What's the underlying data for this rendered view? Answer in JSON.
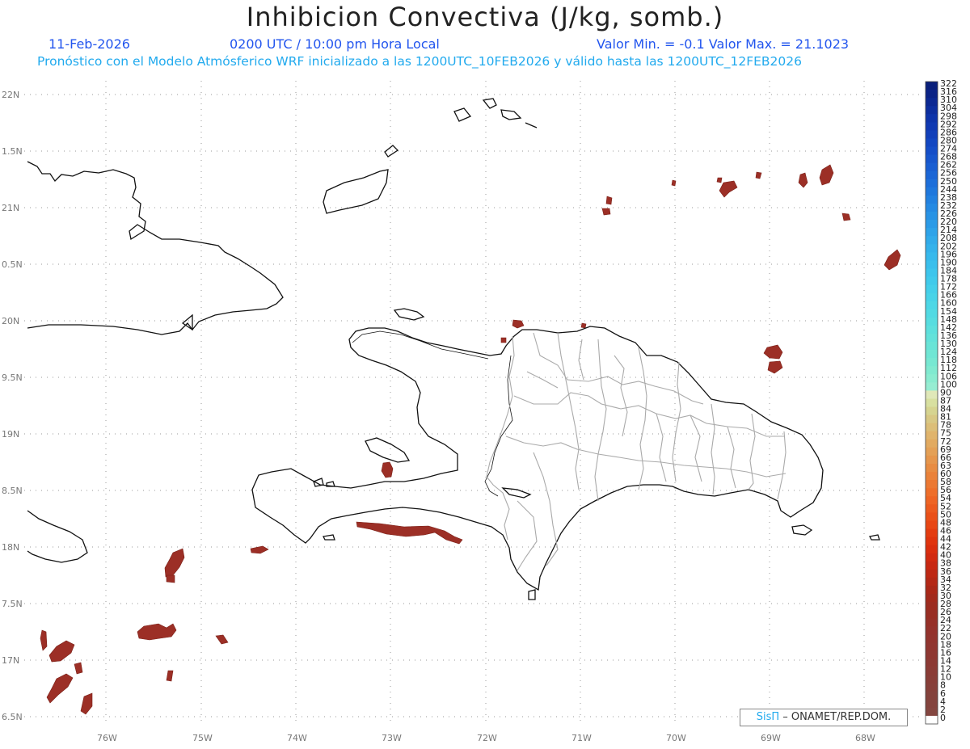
{
  "header": {
    "title": "Inhibicion Convectiva (J/kg, somb.)",
    "date": "11-Feb-2026",
    "time": "0200 UTC / 10:00 pm Hora Local",
    "minmax": "Valor Min. = -0.1  Valor Max. = 21.1023",
    "forecast": "Pronóstico con el Modelo Atmósferico WRF inicializado a las 1200UTC_10FEB2026 y válido hasta las  1200UTC_12FEB2026"
  },
  "map": {
    "lat_labels": [
      "22N",
      "1.5N",
      "21N",
      "0.5N",
      "20N",
      "9.5N",
      "19N",
      "8.5N",
      "18N",
      "7.5N",
      "17N",
      "6.5N"
    ],
    "lon_labels": [
      "76W",
      "75W",
      "74W",
      "73W",
      "72W",
      "71W",
      "70W",
      "69W",
      "68W"
    ],
    "colors": {
      "coast": "#111111",
      "borders": "#aaaaaa",
      "grid": "#999999",
      "cin_fill": "#9c2f26"
    }
  },
  "colorbar": {
    "labels": [
      "322",
      "316",
      "310",
      "304",
      "298",
      "292",
      "286",
      "280",
      "274",
      "268",
      "262",
      "256",
      "250",
      "244",
      "238",
      "232",
      "226",
      "220",
      "214",
      "208",
      "202",
      "196",
      "190",
      "184",
      "178",
      "172",
      "166",
      "160",
      "154",
      "148",
      "142",
      "136",
      "130",
      "124",
      "118",
      "112",
      "106",
      "100",
      "90",
      "87",
      "84",
      "81",
      "78",
      "75",
      "72",
      "69",
      "66",
      "63",
      "60",
      "58",
      "56",
      "54",
      "52",
      "50",
      "48",
      "46",
      "44",
      "42",
      "40",
      "38",
      "36",
      "34",
      "32",
      "30",
      "28",
      "26",
      "24",
      "22",
      "20",
      "18",
      "16",
      "14",
      "12",
      "10",
      "8",
      "6",
      "4",
      "2",
      "0"
    ],
    "colors": [
      "#0a1f7a",
      "#0b2386",
      "#0c2892",
      "#0d2e9e",
      "#0e34aa",
      "#1039b2",
      "#1240ba",
      "#1347c2",
      "#154ec8",
      "#1756cd",
      "#195ed2",
      "#1b66d6",
      "#1d6fda",
      "#1f78dd",
      "#2281e0",
      "#258ae3",
      "#2893e5",
      "#2b9be7",
      "#2ea3e9",
      "#31abea",
      "#34b2eb",
      "#37b9ec",
      "#3abfec",
      "#3dc5ec",
      "#40caeb",
      "#44cfea",
      "#48d3e8",
      "#4dd7e6",
      "#52dae3",
      "#57dde0",
      "#5de0dd",
      "#63e2da",
      "#69e4d7",
      "#70e6d4",
      "#77e8d2",
      "#80ead0",
      "#8aecd0",
      "#96edd2",
      "#e0e8b8",
      "#d8e0a0",
      "#d6d490",
      "#d8c884",
      "#dcbe78",
      "#e0b46c",
      "#e2aa60",
      "#e4a056",
      "#e6964c",
      "#e88c42",
      "#ea823a",
      "#ec7832",
      "#ee6e2a",
      "#ee6424",
      "#ec5a1e",
      "#ea5018",
      "#e84614",
      "#e43c10",
      "#e0340e",
      "#da2e0e",
      "#d22a10",
      "#c82812",
      "#be2814",
      "#b42816",
      "#aa2818",
      "#a22a1c",
      "#9c2c20",
      "#982e24",
      "#963028",
      "#94322c",
      "#92342e",
      "#903630",
      "#8e3832",
      "#8c3a34",
      "#8a3c36",
      "#883e38",
      "#86403a",
      "#84423c",
      "#84443e",
      "#844640",
      "#ffffff"
    ]
  },
  "credit": {
    "sis": "SisΠ",
    "org": "– ONAMET/REP.DOM."
  }
}
